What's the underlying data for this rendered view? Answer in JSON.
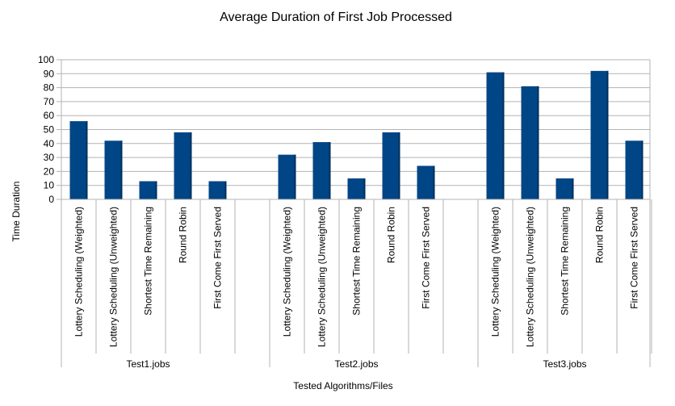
{
  "chart_data": {
    "type": "bar",
    "title": "Average Duration of First Job Processed",
    "xlabel": "Tested Algorithms/Files",
    "ylabel": "Time Duration",
    "ylim": [
      0,
      100
    ],
    "yticks": [
      0,
      10,
      20,
      30,
      40,
      50,
      60,
      70,
      80,
      90,
      100
    ],
    "grid": true,
    "legend": "none",
    "bar_color": "#004586",
    "groups": [
      {
        "name": "Test1.jobs",
        "categories": [
          "Lottery Scheduling (Weighted)",
          "Lottery Scheduling (Unweighted)",
          "Shortest Time Remaining",
          "Round Robin",
          "First Come First Served"
        ],
        "values": [
          56,
          42,
          13,
          48,
          13
        ]
      },
      {
        "name": "Test2.jobs",
        "categories": [
          "Lottery Scheduling (Weighted)",
          "Lottery Scheduling (Unweighted)",
          "Shortest Time Remaining",
          "Round Robin",
          "First Come First Served"
        ],
        "values": [
          32,
          41,
          15,
          48,
          24
        ]
      },
      {
        "name": "Test3.jobs",
        "categories": [
          "Lottery Scheduling (Weighted)",
          "Lottery Scheduling (Unweighted)",
          "Shortest Time Remaining",
          "Round Robin",
          "First Come First Served"
        ],
        "values": [
          91,
          81,
          15,
          92,
          42
        ]
      }
    ]
  }
}
